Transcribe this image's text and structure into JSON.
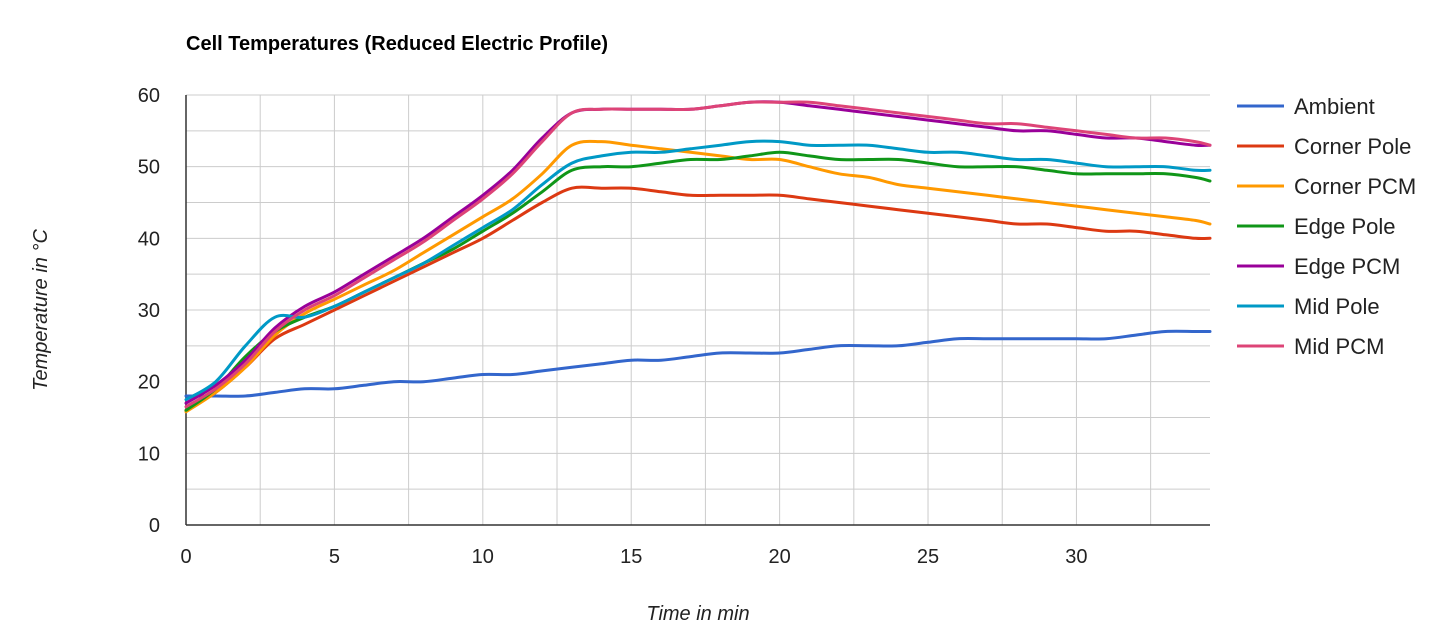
{
  "chart_data": {
    "type": "line",
    "title": "Cell Temperatures (Reduced Electric Profile)",
    "xlabel": "Time in min",
    "ylabel": "Temperature in °C",
    "xlim": [
      0,
      34.5
    ],
    "ylim": [
      0,
      60
    ],
    "x_ticks": [
      0,
      5,
      10,
      15,
      20,
      25,
      30
    ],
    "y_ticks": [
      0,
      10,
      20,
      30,
      40,
      50,
      60
    ],
    "grid": true,
    "legend_position": "right",
    "series": [
      {
        "name": "Ambient",
        "color": "#3366cc",
        "x": [
          0,
          1,
          2,
          3,
          4,
          5,
          6,
          7,
          8,
          9,
          10,
          11,
          12,
          13,
          14,
          15,
          16,
          17,
          18,
          19,
          20,
          21,
          22,
          23,
          24,
          25,
          26,
          27,
          28,
          29,
          30,
          31,
          32,
          33,
          34,
          34.5
        ],
        "y": [
          18,
          18,
          18,
          18.5,
          19,
          19,
          19.5,
          20,
          20,
          20.5,
          21,
          21,
          21.5,
          22,
          22.5,
          23,
          23,
          23.5,
          24,
          24,
          24,
          24.5,
          25,
          25,
          25,
          25.5,
          26,
          26,
          26,
          26,
          26,
          26,
          26.5,
          27,
          27,
          27
        ]
      },
      {
        "name": "Corner Pole",
        "color": "#dc3912",
        "x": [
          0,
          1,
          2,
          3,
          4,
          5,
          6,
          7,
          8,
          9,
          10,
          11,
          12,
          13,
          14,
          15,
          16,
          17,
          18,
          19,
          20,
          21,
          22,
          23,
          24,
          25,
          26,
          27,
          28,
          29,
          30,
          31,
          32,
          33,
          34,
          34.5
        ],
        "y": [
          16,
          18.5,
          22,
          26,
          28,
          30,
          32,
          34,
          36,
          38,
          40,
          42.5,
          45,
          47,
          47,
          47,
          46.5,
          46,
          46,
          46,
          46,
          45.5,
          45,
          44.5,
          44,
          43.5,
          43,
          42.5,
          42,
          42,
          41.5,
          41,
          41,
          40.5,
          40,
          40
        ]
      },
      {
        "name": "Corner PCM",
        "color": "#ff9900",
        "x": [
          0,
          1,
          2,
          3,
          4,
          5,
          6,
          7,
          8,
          9,
          10,
          11,
          12,
          13,
          14,
          15,
          16,
          17,
          18,
          19,
          20,
          21,
          22,
          23,
          24,
          25,
          26,
          27,
          28,
          29,
          30,
          31,
          32,
          33,
          34,
          34.5
        ],
        "y": [
          15.8,
          18.5,
          22,
          26.5,
          29.5,
          31.5,
          33.5,
          35.5,
          38,
          40.5,
          43,
          45.5,
          49,
          53,
          53.5,
          53,
          52.5,
          52,
          51.5,
          51,
          51,
          50,
          49,
          48.5,
          47.5,
          47,
          46.5,
          46,
          45.5,
          45,
          44.5,
          44,
          43.5,
          43,
          42.5,
          42
        ]
      },
      {
        "name": "Edge Pole",
        "color": "#109618",
        "x": [
          0,
          1,
          2,
          3,
          4,
          5,
          6,
          7,
          8,
          9,
          10,
          11,
          12,
          13,
          14,
          15,
          16,
          17,
          18,
          19,
          20,
          21,
          22,
          23,
          24,
          25,
          26,
          27,
          28,
          29,
          30,
          31,
          32,
          33,
          34,
          34.5
        ],
        "y": [
          16,
          19,
          23.5,
          27,
          29,
          30.5,
          32.5,
          34.5,
          36.5,
          38.5,
          41,
          43.5,
          46.5,
          49.5,
          50,
          50,
          50.5,
          51,
          51,
          51.5,
          52,
          51.5,
          51,
          51,
          51,
          50.5,
          50,
          50,
          50,
          49.5,
          49,
          49,
          49,
          49,
          48.5,
          48
        ]
      },
      {
        "name": "Edge PCM",
        "color": "#990099",
        "x": [
          0,
          1,
          2,
          3,
          4,
          5,
          6,
          7,
          8,
          9,
          10,
          11,
          12,
          13,
          14,
          15,
          16,
          17,
          18,
          19,
          20,
          21,
          22,
          23,
          24,
          25,
          26,
          27,
          28,
          29,
          30,
          31,
          32,
          33,
          34,
          34.5
        ],
        "y": [
          17,
          19.5,
          23,
          27.5,
          30.5,
          32.5,
          35,
          37.5,
          40,
          43,
          46,
          49.5,
          54,
          57.5,
          58,
          58,
          58,
          58,
          58.5,
          59,
          59,
          58.5,
          58,
          57.5,
          57,
          56.5,
          56,
          55.5,
          55,
          55,
          54.5,
          54,
          54,
          53.5,
          53,
          53
        ]
      },
      {
        "name": "Mid Pole",
        "color": "#0099c6",
        "x": [
          0,
          1,
          2,
          3,
          4,
          5,
          6,
          7,
          8,
          9,
          10,
          11,
          12,
          13,
          14,
          15,
          16,
          17,
          18,
          19,
          20,
          21,
          22,
          23,
          24,
          25,
          26,
          27,
          28,
          29,
          30,
          31,
          32,
          33,
          34,
          34.5
        ],
        "y": [
          17.5,
          20,
          25,
          29,
          29,
          30.5,
          32.5,
          34.5,
          36.5,
          39,
          41.5,
          44,
          47.5,
          50.5,
          51.5,
          52,
          52,
          52.5,
          53,
          53.5,
          53.5,
          53,
          53,
          53,
          52.5,
          52,
          52,
          51.5,
          51,
          51,
          50.5,
          50,
          50,
          50,
          49.5,
          49.5
        ]
      },
      {
        "name": "Mid PCM",
        "color": "#dd4477",
        "x": [
          0,
          1,
          2,
          3,
          4,
          5,
          6,
          7,
          8,
          9,
          10,
          11,
          12,
          13,
          14,
          15,
          16,
          17,
          18,
          19,
          20,
          21,
          22,
          23,
          24,
          25,
          26,
          27,
          28,
          29,
          30,
          31,
          32,
          33,
          34,
          34.5
        ],
        "y": [
          16.5,
          19,
          22.5,
          27,
          30,
          32,
          34.5,
          37,
          39.5,
          42.5,
          45.5,
          49,
          53.5,
          57.5,
          58,
          58,
          58,
          58,
          58.5,
          59,
          59,
          59,
          58.5,
          58,
          57.5,
          57,
          56.5,
          56,
          56,
          55.5,
          55,
          54.5,
          54,
          54,
          53.5,
          53
        ]
      }
    ]
  }
}
